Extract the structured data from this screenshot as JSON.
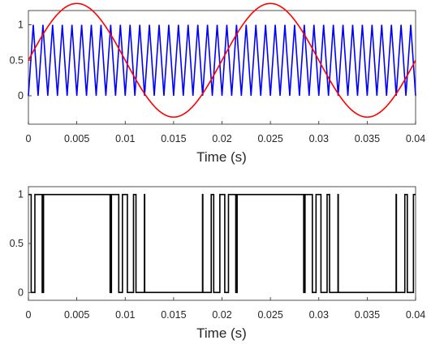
{
  "chart_data": [
    {
      "type": "line",
      "xlabel": "Time (s)",
      "ylabel": "",
      "title": "",
      "xlim": [
        0,
        0.04
      ],
      "ylim": [
        -0.4,
        1.2
      ],
      "xticks": [
        0,
        0.005,
        0.01,
        0.015,
        0.02,
        0.025,
        0.03,
        0.035,
        0.04
      ],
      "xtick_labels": [
        "0",
        "0.005",
        "0.01",
        "0.015",
        "0.02",
        "0.025",
        "0.03",
        "0.035",
        "0.04"
      ],
      "yticks": [
        0,
        0.5,
        1
      ],
      "ytick_labels": [
        "0",
        "0.5",
        "1"
      ],
      "grid": false,
      "series": [
        {
          "color": "#0000ff",
          "kind": "triangle-carrier",
          "frequency_hz": 1000,
          "min": 0,
          "max": 1
        },
        {
          "color": "#ff0000",
          "kind": "sine-reference",
          "frequency_hz": 50,
          "offset": 0.5,
          "amplitude": 0.8,
          "phase_rad": 0
        }
      ]
    },
    {
      "type": "line",
      "xlabel": "Time (s)",
      "ylabel": "",
      "title": "",
      "xlim": [
        0,
        0.04
      ],
      "ylim": [
        -0.08,
        1.08
      ],
      "xticks": [
        0,
        0.005,
        0.01,
        0.015,
        0.02,
        0.025,
        0.03,
        0.035,
        0.04
      ],
      "xtick_labels": [
        "0",
        "0.005",
        "0.01",
        "0.015",
        "0.02",
        "0.025",
        "0.03",
        "0.035",
        "0.04"
      ],
      "yticks": [
        0,
        0.5,
        1
      ],
      "ytick_labels": [
        "0",
        "0.5",
        "1"
      ],
      "grid": false,
      "series": [
        {
          "color": "#000000",
          "kind": "pwm-output",
          "rule": "1 when sine reference >= triangle carrier, else 0"
        }
      ]
    }
  ]
}
